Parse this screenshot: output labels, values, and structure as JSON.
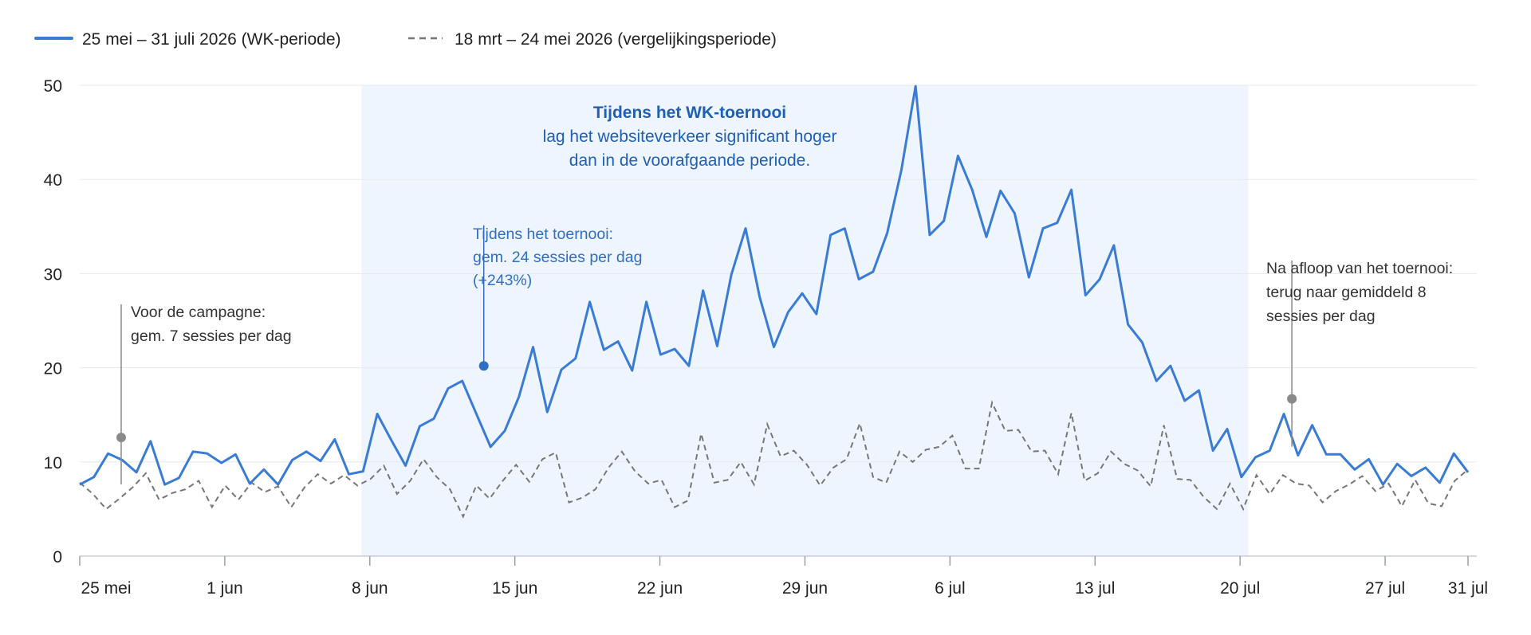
{
  "chart_data": {
    "type": "line",
    "y_ticks": [
      0,
      10,
      20,
      30,
      40,
      50
    ],
    "ylim": [
      0,
      50
    ],
    "x_ticks": [
      {
        "day": 0,
        "label": "25 mei"
      },
      {
        "day": 7,
        "label": "1 jun"
      },
      {
        "day": 14,
        "label": "8 jun"
      },
      {
        "day": 21,
        "label": "15 jun"
      },
      {
        "day": 28,
        "label": "22 jun"
      },
      {
        "day": 35,
        "label": "29 jun"
      },
      {
        "day": 42,
        "label": "6 jul"
      },
      {
        "day": 49,
        "label": "13 jul"
      },
      {
        "day": 56,
        "label": "20 jul"
      },
      {
        "day": 63,
        "label": "27 jul"
      },
      {
        "day": 67,
        "label": "31 jul"
      }
    ],
    "xlim": [
      0,
      67
    ],
    "grid": true,
    "legend_position": "top-left",
    "series": [
      {
        "name": "25 mei – 31 juli 2026 (WK-periode)",
        "style": "solid",
        "color": "#3a7bd5",
        "values": [
          7.6,
          8.4,
          10.9,
          10.2,
          8.9,
          12.2,
          7.6,
          8.3,
          11.1,
          10.9,
          9.9,
          10.8,
          7.7,
          9.2,
          7.6,
          10.2,
          11.1,
          10.1,
          12.4,
          8.7,
          9.0,
          15.1,
          12.3,
          9.6,
          13.8,
          14.6,
          17.8,
          18.6,
          15.1,
          11.6,
          13.3,
          16.9,
          22.2,
          15.3,
          19.8,
          21.0,
          27.0,
          21.9,
          22.8,
          19.7,
          27.0,
          21.4,
          22.0,
          20.2,
          28.2,
          22.3,
          29.9,
          34.8,
          27.5,
          22.2,
          25.9,
          27.9,
          25.7,
          34.1,
          34.8,
          29.4,
          30.2,
          34.3,
          41.0,
          49.9,
          34.1,
          35.6,
          42.5,
          38.9,
          33.9,
          38.8,
          36.4,
          29.6,
          34.8,
          35.4,
          38.9,
          27.7,
          29.4,
          33.0,
          24.6,
          22.7,
          18.6,
          20.2,
          16.5,
          17.6,
          11.2,
          13.5,
          8.4,
          10.5,
          11.2,
          15.1,
          10.7,
          13.9,
          10.8,
          10.8,
          9.2,
          10.3,
          7.6,
          9.8,
          8.5,
          9.4,
          7.8,
          10.9,
          8.9
        ]
      },
      {
        "name": "18 mrt – 24 mei 2026 (vergelijkingsperiode)",
        "style": "dashed",
        "color": "#777777",
        "values": [
          7.8,
          6.6,
          5.0,
          6.1,
          7.3,
          8.8,
          6.0,
          6.7,
          7.1,
          8.0,
          5.2,
          7.5,
          6.0,
          7.8,
          6.8,
          7.4,
          5.2,
          7.3,
          8.7,
          7.7,
          8.6,
          7.5,
          8.2,
          9.6,
          6.6,
          8.0,
          10.3,
          8.4,
          7.1,
          4.2,
          7.5,
          6.1,
          8.0,
          9.7,
          7.9,
          10.3,
          11.0,
          5.7,
          6.2,
          7.1,
          9.4,
          11.1,
          9.0,
          7.7,
          8.1,
          5.2,
          5.9,
          13.0,
          7.8,
          8.1,
          10.0,
          7.6,
          14.0,
          10.6,
          11.2,
          9.7,
          7.5,
          9.4,
          10.3,
          14.1,
          8.4,
          7.8,
          11.1,
          10.0,
          11.3,
          11.6,
          12.8,
          9.3,
          9.3,
          16.3,
          13.3,
          13.4,
          11.1,
          11.2,
          8.7,
          15.2,
          8.0,
          8.8,
          11.1,
          9.8,
          9.1,
          7.4,
          13.9,
          8.2,
          8.1,
          6.3,
          5.0,
          7.7,
          5.0,
          8.6,
          6.6,
          8.6,
          7.7,
          7.5,
          5.7,
          6.9,
          7.6,
          8.5,
          6.9,
          7.7,
          5.3,
          8.1,
          5.6,
          5.3,
          8.0,
          9.2
        ]
      }
    ],
    "highlight_band": {
      "start_day": 13.6,
      "end_day": 56.4
    },
    "highlight_title": "Tijdens het WK-toernooi",
    "highlight_text": [
      "lag het websiteverkeer significant hoger",
      "dan in de voorafgaande periode."
    ],
    "annotations": [
      {
        "id": "before",
        "day": 2.0,
        "y": 12.6,
        "lines": [
          "Voor de campagne:",
          "gem. 7 sessies per dag"
        ],
        "color": "#777777"
      },
      {
        "id": "during",
        "day": 19.5,
        "y": 20.2,
        "lines": [
          "Tijdens het toernooi:",
          "gem. 24 sessies per dag",
          "(+243%)"
        ],
        "color": "#2f6fc4"
      },
      {
        "id": "after",
        "day": 58.5,
        "y": 16.7,
        "lines": [
          "Na afloop van het toernooi:",
          "terug naar gemiddeld 8",
          "sessies per dag"
        ],
        "color": "#777777"
      }
    ]
  }
}
